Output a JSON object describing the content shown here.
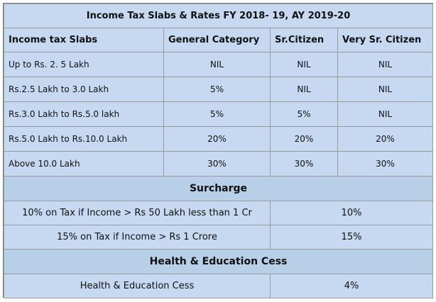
{
  "title": "Income Tax Slabs & Rates FY 2018- 19, AY 2019-20",
  "columns": [
    "Income tax Slabs",
    "General Category",
    "Sr.Citizen",
    "Very Sr. Citizen"
  ],
  "slabs": [
    {
      "slab": "Up to Rs. 2. 5 Lakh",
      "general": "NIL",
      "senior": "NIL",
      "very_senior": "NIL"
    },
    {
      "slab": "Rs.2.5 Lakh to 3.0 Lakh",
      "general": "5%",
      "senior": "NIL",
      "very_senior": "NIL"
    },
    {
      "slab": "Rs.3.0 Lakh to Rs.5.0 lakh",
      "general": "5%",
      "senior": "5%",
      "very_senior": "NIL"
    },
    {
      "slab": "Rs.5.0 Lakh to Rs.10.0 Lakh",
      "general": "20%",
      "senior": "20%",
      "very_senior": "20%"
    },
    {
      "slab": "Above 10.0 Lakh",
      "general": "30%",
      "senior": "30%",
      "very_senior": "30%"
    }
  ],
  "surcharge": {
    "heading": "Surcharge",
    "rows": [
      {
        "label": "10% on Tax if Income > Rs 50 Lakh less than 1 Cr",
        "rate": "10%"
      },
      {
        "label": "15% on Tax if Income > Rs 1 Crore",
        "rate": "15%"
      }
    ]
  },
  "cess": {
    "heading": "Health & Education Cess",
    "rows": [
      {
        "label": "Health & Education Cess",
        "rate": "4%"
      }
    ]
  }
}
